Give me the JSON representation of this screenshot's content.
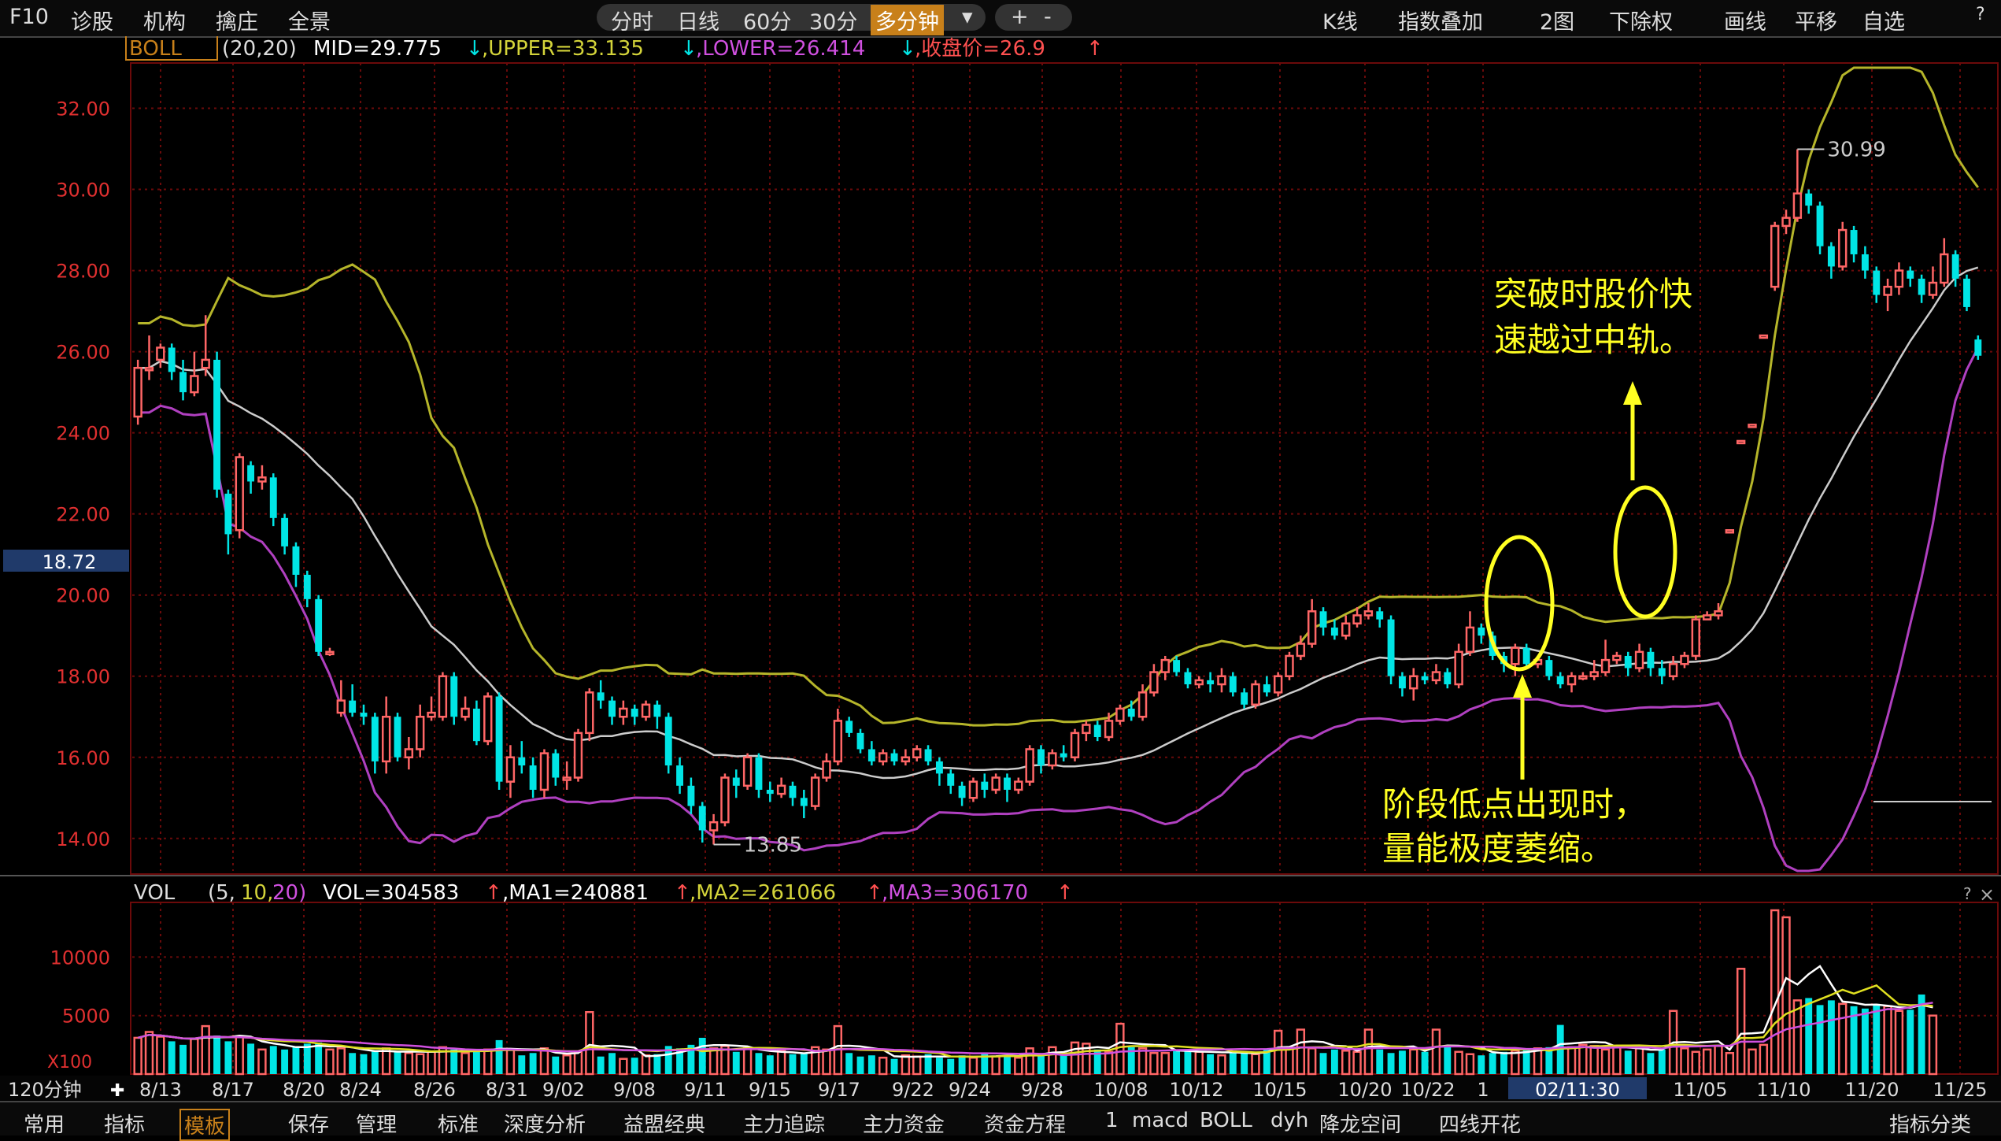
{
  "toolbar": {
    "left": [
      "F10",
      "诊股",
      "机构",
      "擒庄",
      "全景"
    ],
    "period_tabs": [
      "分时",
      "日线",
      "60分",
      "30分",
      "多分钟"
    ],
    "period_active_index": 4,
    "zoom_plus": "+",
    "zoom_minus": "-",
    "right": [
      "K线",
      "指数叠加",
      "2图",
      "下除权",
      "画线",
      "平移",
      "自选"
    ],
    "help": "?"
  },
  "price_header": {
    "indicator": "BOLL",
    "params": "(20,20)",
    "mid": "MID=29.775",
    "upper": ",UPPER=33.135",
    "lower": ",LOWER=26.414",
    "close": ",收盘价=26.9"
  },
  "volume_header": {
    "indicator": "VOL",
    "params_prefix": "(5,",
    "p1": "10,",
    "p2": "20)",
    "vol": "VOL=304583",
    "ma1": ",MA1=240881",
    "ma2": ",MA2=261066",
    "ma3": ",MA3=306170"
  },
  "colors": {
    "up": "#ff6666",
    "down": "#00e5e5",
    "upper": "#b5b52a",
    "mid": "#cccccc",
    "lower": "#b040c0",
    "grid": "#6b0a0a",
    "annotation": "#ffff22",
    "axis_text": "#e03030"
  },
  "chart_data": {
    "type": "candlestick",
    "price_axis": {
      "ticks": [
        14,
        16,
        18,
        20,
        22,
        24,
        26,
        28,
        30,
        32
      ],
      "tick_labels": [
        "14.00",
        "16.00",
        "18.00",
        "20.00",
        "22.00",
        "24.00",
        "26.00",
        "28.00",
        "30.00",
        "32.00"
      ]
    },
    "volume_axis": {
      "ticks": [
        5000,
        10000
      ],
      "tick_labels": [
        "5000",
        "10000"
      ],
      "unit_label": "X100"
    },
    "current_price_label": "18.72",
    "high_label": "30.99",
    "low_label": "13.85",
    "x_tick_labels": [
      "8/13",
      "8/17",
      "8/20",
      "8/24",
      "8/26",
      "8/31",
      "9/02",
      "9/08",
      "9/11",
      "9/15",
      "9/17",
      "9/22",
      "9/24",
      "9/28",
      "10/08",
      "10/12",
      "10/15",
      "10/20",
      "10/22",
      "1",
      "11/05",
      "11/10",
      "11/20",
      "11/25"
    ],
    "x_highlight": "02/11:30",
    "period_label": "120分钟",
    "candles": [
      [
        24.4,
        25.6,
        25.8,
        24.2
      ],
      [
        25.6,
        25.6,
        26.4,
        25.3
      ],
      [
        25.8,
        26.1,
        26.2,
        25.6
      ],
      [
        26.1,
        25.5,
        26.2,
        25.3
      ],
      [
        25.5,
        25.0,
        25.8,
        24.8
      ],
      [
        25.0,
        25.4,
        26.0,
        24.9
      ],
      [
        25.6,
        25.8,
        26.9,
        25.4
      ],
      [
        25.8,
        22.6,
        26.0,
        22.4
      ],
      [
        22.5,
        21.5,
        22.6,
        21.0
      ],
      [
        21.6,
        23.4,
        23.5,
        21.4
      ],
      [
        23.2,
        22.8,
        23.3,
        22.5
      ],
      [
        22.8,
        22.9,
        23.2,
        22.6
      ],
      [
        22.9,
        21.9,
        23.0,
        21.7
      ],
      [
        21.9,
        21.2,
        22.0,
        21.0
      ],
      [
        21.2,
        20.5,
        21.3,
        20.2
      ],
      [
        20.5,
        19.9,
        20.6,
        19.7
      ],
      [
        19.9,
        18.6,
        20.0,
        18.5
      ],
      [
        18.6,
        18.6,
        18.7,
        18.5
      ],
      [
        17.1,
        17.4,
        17.9,
        17.0
      ],
      [
        17.4,
        17.1,
        17.8,
        17.0
      ],
      [
        17.1,
        17.0,
        17.3,
        16.8
      ],
      [
        17.0,
        15.9,
        17.1,
        15.6
      ],
      [
        15.9,
        17.0,
        17.5,
        15.6
      ],
      [
        17.0,
        16.0,
        17.1,
        15.9
      ],
      [
        16.0,
        16.2,
        16.5,
        15.7
      ],
      [
        16.2,
        17.0,
        17.3,
        16.0
      ],
      [
        17.0,
        17.1,
        17.5,
        16.9
      ],
      [
        17.0,
        18.0,
        18.1,
        16.9
      ],
      [
        18.0,
        17.0,
        18.1,
        16.8
      ],
      [
        17.0,
        17.2,
        17.5,
        16.9
      ],
      [
        17.2,
        16.4,
        17.4,
        16.3
      ],
      [
        16.4,
        17.5,
        17.6,
        16.3
      ],
      [
        17.5,
        15.4,
        17.6,
        15.2
      ],
      [
        15.4,
        16.0,
        16.3,
        15.0
      ],
      [
        16.0,
        15.8,
        16.4,
        15.6
      ],
      [
        15.8,
        15.2,
        16.0,
        15.0
      ],
      [
        15.2,
        16.1,
        16.2,
        15.0
      ],
      [
        16.1,
        15.5,
        16.2,
        15.3
      ],
      [
        15.5,
        15.5,
        15.9,
        15.2
      ],
      [
        15.5,
        16.6,
        16.7,
        15.4
      ],
      [
        16.6,
        17.6,
        17.7,
        16.4
      ],
      [
        17.6,
        17.4,
        17.9,
        17.2
      ],
      [
        17.4,
        17.0,
        17.5,
        16.8
      ],
      [
        17.0,
        17.2,
        17.4,
        16.8
      ],
      [
        17.2,
        17.0,
        17.3,
        16.8
      ],
      [
        17.0,
        17.3,
        17.4,
        16.9
      ],
      [
        17.3,
        17.0,
        17.4,
        16.7
      ],
      [
        17.0,
        15.8,
        17.1,
        15.6
      ],
      [
        15.8,
        15.3,
        16.0,
        15.1
      ],
      [
        15.3,
        14.8,
        15.5,
        14.6
      ],
      [
        14.8,
        14.2,
        14.9,
        13.9
      ],
      [
        14.2,
        14.4,
        14.6,
        13.85
      ],
      [
        14.4,
        15.5,
        15.6,
        14.3
      ],
      [
        15.5,
        15.3,
        15.7,
        15.0
      ],
      [
        15.3,
        16.0,
        16.1,
        15.2
      ],
      [
        16.0,
        15.2,
        16.1,
        15.0
      ],
      [
        15.2,
        15.1,
        15.4,
        14.9
      ],
      [
        15.1,
        15.3,
        15.5,
        15.0
      ],
      [
        15.3,
        15.0,
        15.4,
        14.8
      ],
      [
        15.0,
        14.8,
        15.2,
        14.5
      ],
      [
        14.8,
        15.5,
        15.6,
        14.7
      ],
      [
        15.5,
        15.9,
        16.1,
        15.4
      ],
      [
        15.9,
        16.9,
        17.2,
        15.8
      ],
      [
        16.9,
        16.6,
        17.0,
        16.5
      ],
      [
        16.6,
        16.2,
        16.7,
        16.1
      ],
      [
        16.2,
        15.9,
        16.4,
        15.8
      ],
      [
        15.9,
        16.1,
        16.2,
        15.8
      ],
      [
        16.1,
        15.9,
        16.2,
        15.8
      ],
      [
        15.9,
        16.0,
        16.2,
        15.8
      ],
      [
        16.0,
        16.2,
        16.3,
        15.9
      ],
      [
        16.2,
        15.9,
        16.3,
        15.8
      ],
      [
        15.9,
        15.6,
        16.0,
        15.3
      ],
      [
        15.6,
        15.3,
        15.7,
        15.1
      ],
      [
        15.3,
        15.0,
        15.4,
        14.8
      ],
      [
        15.0,
        15.4,
        15.5,
        14.9
      ],
      [
        15.4,
        15.2,
        15.6,
        15.0
      ],
      [
        15.2,
        15.5,
        15.6,
        15.1
      ],
      [
        15.5,
        15.2,
        15.6,
        14.9
      ],
      [
        15.2,
        15.4,
        15.5,
        15.1
      ],
      [
        15.4,
        16.2,
        16.3,
        15.3
      ],
      [
        16.2,
        15.8,
        16.3,
        15.6
      ],
      [
        15.8,
        16.1,
        16.2,
        15.7
      ],
      [
        16.1,
        16.0,
        16.3,
        15.9
      ],
      [
        16.0,
        16.6,
        16.7,
        15.9
      ],
      [
        16.6,
        16.8,
        16.9,
        16.4
      ],
      [
        16.8,
        16.5,
        16.9,
        16.4
      ],
      [
        16.5,
        16.9,
        17.1,
        16.4
      ],
      [
        16.9,
        17.2,
        17.3,
        16.8
      ],
      [
        17.2,
        17.0,
        17.4,
        16.9
      ],
      [
        17.0,
        17.6,
        17.8,
        16.9
      ],
      [
        17.6,
        18.1,
        18.3,
        17.5
      ],
      [
        18.1,
        18.4,
        18.5,
        17.9
      ],
      [
        18.4,
        18.1,
        18.5,
        18.0
      ],
      [
        18.1,
        17.8,
        18.2,
        17.7
      ],
      [
        17.8,
        17.9,
        18.0,
        17.7
      ],
      [
        17.9,
        17.8,
        18.1,
        17.6
      ],
      [
        17.8,
        18.0,
        18.2,
        17.6
      ],
      [
        18.0,
        17.6,
        18.1,
        17.5
      ],
      [
        17.6,
        17.3,
        17.7,
        17.2
      ],
      [
        17.3,
        17.8,
        17.9,
        17.2
      ],
      [
        17.8,
        17.6,
        18.0,
        17.5
      ],
      [
        17.6,
        18.0,
        18.1,
        17.5
      ],
      [
        18.0,
        18.5,
        18.6,
        17.9
      ],
      [
        18.5,
        18.8,
        19.0,
        18.4
      ],
      [
        18.8,
        19.6,
        19.9,
        18.7
      ],
      [
        19.6,
        19.2,
        19.7,
        19.0
      ],
      [
        19.2,
        19.0,
        19.4,
        18.9
      ],
      [
        19.0,
        19.3,
        19.5,
        18.9
      ],
      [
        19.3,
        19.5,
        19.7,
        19.2
      ],
      [
        19.5,
        19.6,
        19.8,
        19.4
      ],
      [
        19.6,
        19.4,
        19.7,
        19.2
      ],
      [
        19.4,
        18.0,
        19.5,
        17.8
      ],
      [
        18.0,
        17.7,
        18.1,
        17.5
      ],
      [
        17.7,
        18.0,
        18.2,
        17.4
      ],
      [
        18.0,
        17.9,
        18.1,
        17.8
      ],
      [
        17.9,
        18.1,
        18.3,
        17.8
      ],
      [
        18.1,
        17.8,
        18.2,
        17.7
      ],
      [
        17.8,
        18.6,
        18.8,
        17.7
      ],
      [
        18.6,
        19.2,
        19.6,
        18.5
      ],
      [
        19.2,
        19.0,
        19.3,
        18.8
      ],
      [
        19.0,
        18.5,
        19.1,
        18.4
      ],
      [
        18.5,
        18.3,
        18.6,
        18.1
      ],
      [
        18.3,
        18.7,
        18.8,
        18.0
      ],
      [
        18.7,
        18.3,
        18.8,
        18.2
      ],
      [
        18.3,
        18.4,
        18.5,
        18.2
      ],
      [
        18.4,
        18.0,
        18.5,
        17.9
      ],
      [
        18.0,
        17.8,
        18.1,
        17.7
      ],
      [
        17.8,
        18.0,
        18.1,
        17.6
      ],
      [
        18.0,
        18.0,
        18.1,
        17.9
      ],
      [
        18.0,
        18.1,
        18.4,
        17.9
      ],
      [
        18.1,
        18.4,
        18.9,
        18.0
      ],
      [
        18.4,
        18.5,
        18.6,
        18.3
      ],
      [
        18.5,
        18.2,
        18.6,
        18.0
      ],
      [
        18.2,
        18.6,
        18.8,
        18.1
      ],
      [
        18.6,
        18.2,
        18.7,
        18.0
      ],
      [
        18.2,
        18.0,
        18.4,
        17.8
      ],
      [
        18.0,
        18.3,
        18.5,
        17.9
      ],
      [
        18.3,
        18.5,
        18.6,
        18.2
      ],
      [
        18.5,
        19.4,
        19.5,
        18.4
      ],
      [
        19.4,
        19.5,
        19.6,
        19.4
      ],
      [
        19.5,
        19.6,
        19.8,
        19.4
      ],
      [
        21.6,
        21.6,
        21.6,
        21.6
      ],
      [
        23.8,
        23.8,
        23.8,
        23.8
      ],
      [
        24.2,
        24.2,
        24.2,
        24.2
      ],
      [
        26.4,
        26.4,
        26.4,
        26.4
      ],
      [
        27.6,
        29.1,
        29.2,
        27.5
      ],
      [
        29.1,
        29.3,
        29.5,
        28.9
      ],
      [
        29.3,
        29.9,
        30.99,
        29.2
      ],
      [
        29.9,
        29.6,
        30.0,
        29.4
      ],
      [
        29.6,
        28.6,
        29.7,
        28.4
      ],
      [
        28.6,
        28.1,
        28.7,
        27.8
      ],
      [
        28.1,
        29.0,
        29.2,
        28.0
      ],
      [
        29.0,
        28.4,
        29.1,
        28.2
      ],
      [
        28.4,
        28.0,
        28.6,
        27.8
      ],
      [
        28.0,
        27.4,
        28.1,
        27.2
      ],
      [
        27.4,
        27.6,
        27.8,
        27.0
      ],
      [
        27.6,
        28.0,
        28.2,
        27.4
      ],
      [
        28.0,
        27.8,
        28.1,
        27.6
      ],
      [
        27.8,
        27.4,
        27.9,
        27.2
      ],
      [
        27.4,
        27.7,
        28.1,
        27.3
      ],
      [
        27.7,
        28.4,
        28.8,
        27.6
      ],
      [
        28.4,
        27.8,
        28.5,
        27.6
      ],
      [
        27.8,
        27.1,
        27.9,
        27.0
      ],
      [
        26.3,
        25.9,
        26.4,
        25.8
      ]
    ],
    "volume": [
      3100,
      3600,
      3200,
      2800,
      2500,
      3000,
      4100,
      3300,
      2800,
      3200,
      2600,
      2100,
      2400,
      2100,
      2300,
      2600,
      2700,
      2100,
      2200,
      1800,
      1700,
      2000,
      2200,
      1900,
      1800,
      1700,
      1900,
      2300,
      2100,
      1800,
      1900,
      2100,
      2900,
      2100,
      1600,
      1800,
      2200,
      1500,
      1600,
      1900,
      5300,
      1500,
      1800,
      1300,
      1400,
      1600,
      1700,
      2400,
      2200,
      2500,
      3100,
      2200,
      2400,
      1900,
      2200,
      1800,
      1600,
      2000,
      1700,
      1800,
      2300,
      2100,
      4100,
      1800,
      1500,
      1600,
      1400,
      1300,
      1600,
      1500,
      1700,
      1400,
      1300,
      1600,
      1400,
      1800,
      1500,
      1600,
      1400,
      2200,
      1700,
      2300,
      1800,
      2700,
      2600,
      2100,
      1900,
      4300,
      2300,
      2200,
      1800,
      1800,
      2000,
      2100,
      1900,
      1700,
      1600,
      2000,
      1900,
      1700,
      2100,
      3700,
      2200,
      3800,
      2200,
      1800,
      2100,
      2000,
      1900,
      3800,
      2100,
      1800,
      2000,
      2100,
      1900,
      3800,
      2400,
      1900,
      1700,
      1600,
      1800,
      1900,
      2000,
      2100,
      2200,
      2300,
      4200,
      2300,
      2500,
      2400,
      2100,
      2300,
      2000,
      2200,
      1800,
      2100,
      5400,
      2200,
      1900,
      2100,
      2400,
      1800,
      9000,
      2100,
      2500,
      14000,
      13400,
      6300,
      6500,
      5900,
      6300,
      6000,
      5800,
      5600,
      6000,
      5800,
      5400,
      5500,
      6800,
      5000
    ],
    "boll_upper_labels": "UPPER",
    "boll_mid_labels": "MID",
    "boll_lower_labels": "LOWER"
  },
  "annotations": {
    "breakout_line1": "突破时股价快",
    "breakout_line2": "速越过中轨。",
    "low_line1": "阶段低点出现时，",
    "low_line2": "量能极度萎缩。"
  },
  "bottombar": {
    "items": [
      "常用",
      "指标",
      "模板",
      "保存",
      "管理",
      "标准",
      "深度分析",
      "益盟经典",
      "主力追踪",
      "主力资金",
      "资金方程",
      "1",
      "macd",
      "BOLL",
      "dyh",
      "降龙空间",
      "四线开花"
    ],
    "right": "指标分类"
  }
}
